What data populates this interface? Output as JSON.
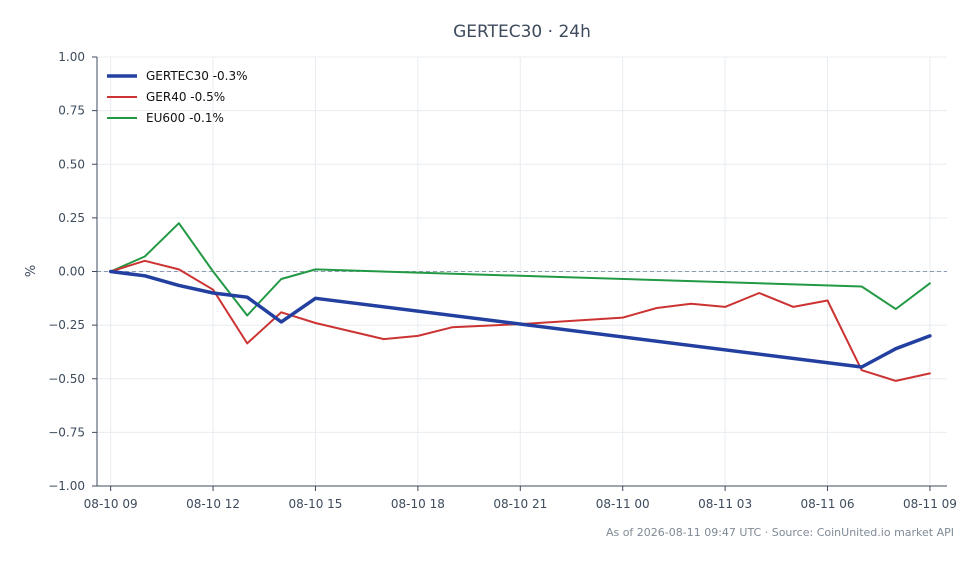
{
  "chart_data": {
    "type": "line",
    "title": "GERTEC30 · 24h",
    "xlabel": "",
    "ylabel": "%",
    "ylim": [
      -1.0,
      1.0
    ],
    "yticks": [
      "1.00",
      "0.75",
      "0.50",
      "0.25",
      "0.00",
      "−0.25",
      "−0.50",
      "−0.75",
      "−1.00"
    ],
    "ytick_values": [
      1.0,
      0.75,
      0.5,
      0.25,
      0.0,
      -0.25,
      -0.5,
      -0.75,
      -1.0
    ],
    "xlim": [
      "2026-08-10 08:36",
      "2026-08-11 09:30"
    ],
    "xticks": [
      "08-10 09",
      "08-10 12",
      "08-10 15",
      "08-10 18",
      "08-10 21",
      "08-11 00",
      "08-11 03",
      "08-11 06",
      "08-11 09"
    ],
    "xtick_values": [
      "2026-08-10 09:00",
      "2026-08-10 12:00",
      "2026-08-10 15:00",
      "2026-08-10 18:00",
      "2026-08-10 21:00",
      "2026-08-11 00:00",
      "2026-08-11 03:00",
      "2026-08-11 06:00",
      "2026-08-11 09:00"
    ],
    "grid": true,
    "zero_line": true,
    "legend_position": "top-left",
    "series": [
      {
        "name": "GERTEC30 -0.3%",
        "color": "#2340a0",
        "x": [
          "2026-08-10 09:00",
          "2026-08-10 10:00",
          "2026-08-10 11:00",
          "2026-08-10 12:00",
          "2026-08-10 13:00",
          "2026-08-10 14:00",
          "2026-08-10 15:00",
          "2026-08-11 07:00",
          "2026-08-11 08:00",
          "2026-08-11 09:00"
        ],
        "y": [
          0.0,
          -0.02,
          -0.065,
          -0.1,
          -0.12,
          -0.235,
          -0.125,
          -0.445,
          -0.36,
          -0.3
        ]
      },
      {
        "name": "GER40 -0.5%",
        "color": "#cc3333",
        "x": [
          "2026-08-10 09:00",
          "2026-08-10 10:00",
          "2026-08-10 11:00",
          "2026-08-10 12:00",
          "2026-08-10 13:00",
          "2026-08-10 14:00",
          "2026-08-10 15:00",
          "2026-08-10 17:00",
          "2026-08-10 18:00",
          "2026-08-10 19:00",
          "2026-08-10 21:00",
          "2026-08-11 00:00",
          "2026-08-11 01:00",
          "2026-08-11 02:00",
          "2026-08-11 03:00",
          "2026-08-11 04:00",
          "2026-08-11 05:00",
          "2026-08-11 06:00",
          "2026-08-11 07:00",
          "2026-08-11 08:00",
          "2026-08-11 09:00"
        ],
        "y": [
          0.0,
          0.05,
          0.01,
          -0.085,
          -0.335,
          -0.19,
          -0.24,
          -0.315,
          -0.3,
          -0.26,
          -0.245,
          -0.215,
          -0.17,
          -0.15,
          -0.165,
          -0.1,
          -0.165,
          -0.135,
          -0.46,
          -0.51,
          -0.475
        ]
      },
      {
        "name": "EU600 -0.1%",
        "color": "#229944",
        "x": [
          "2026-08-10 09:00",
          "2026-08-10 10:00",
          "2026-08-10 11:00",
          "2026-08-10 12:00",
          "2026-08-10 13:00",
          "2026-08-10 14:00",
          "2026-08-10 15:00",
          "2026-08-11 07:00",
          "2026-08-11 08:00",
          "2026-08-11 09:00"
        ],
        "y": [
          0.0,
          0.07,
          0.225,
          0.0,
          -0.205,
          -0.035,
          0.01,
          -0.07,
          -0.175,
          -0.055
        ]
      }
    ]
  },
  "footer": "As of 2026-08-11 09:47 UTC · Source: CoinUnited.io market API"
}
